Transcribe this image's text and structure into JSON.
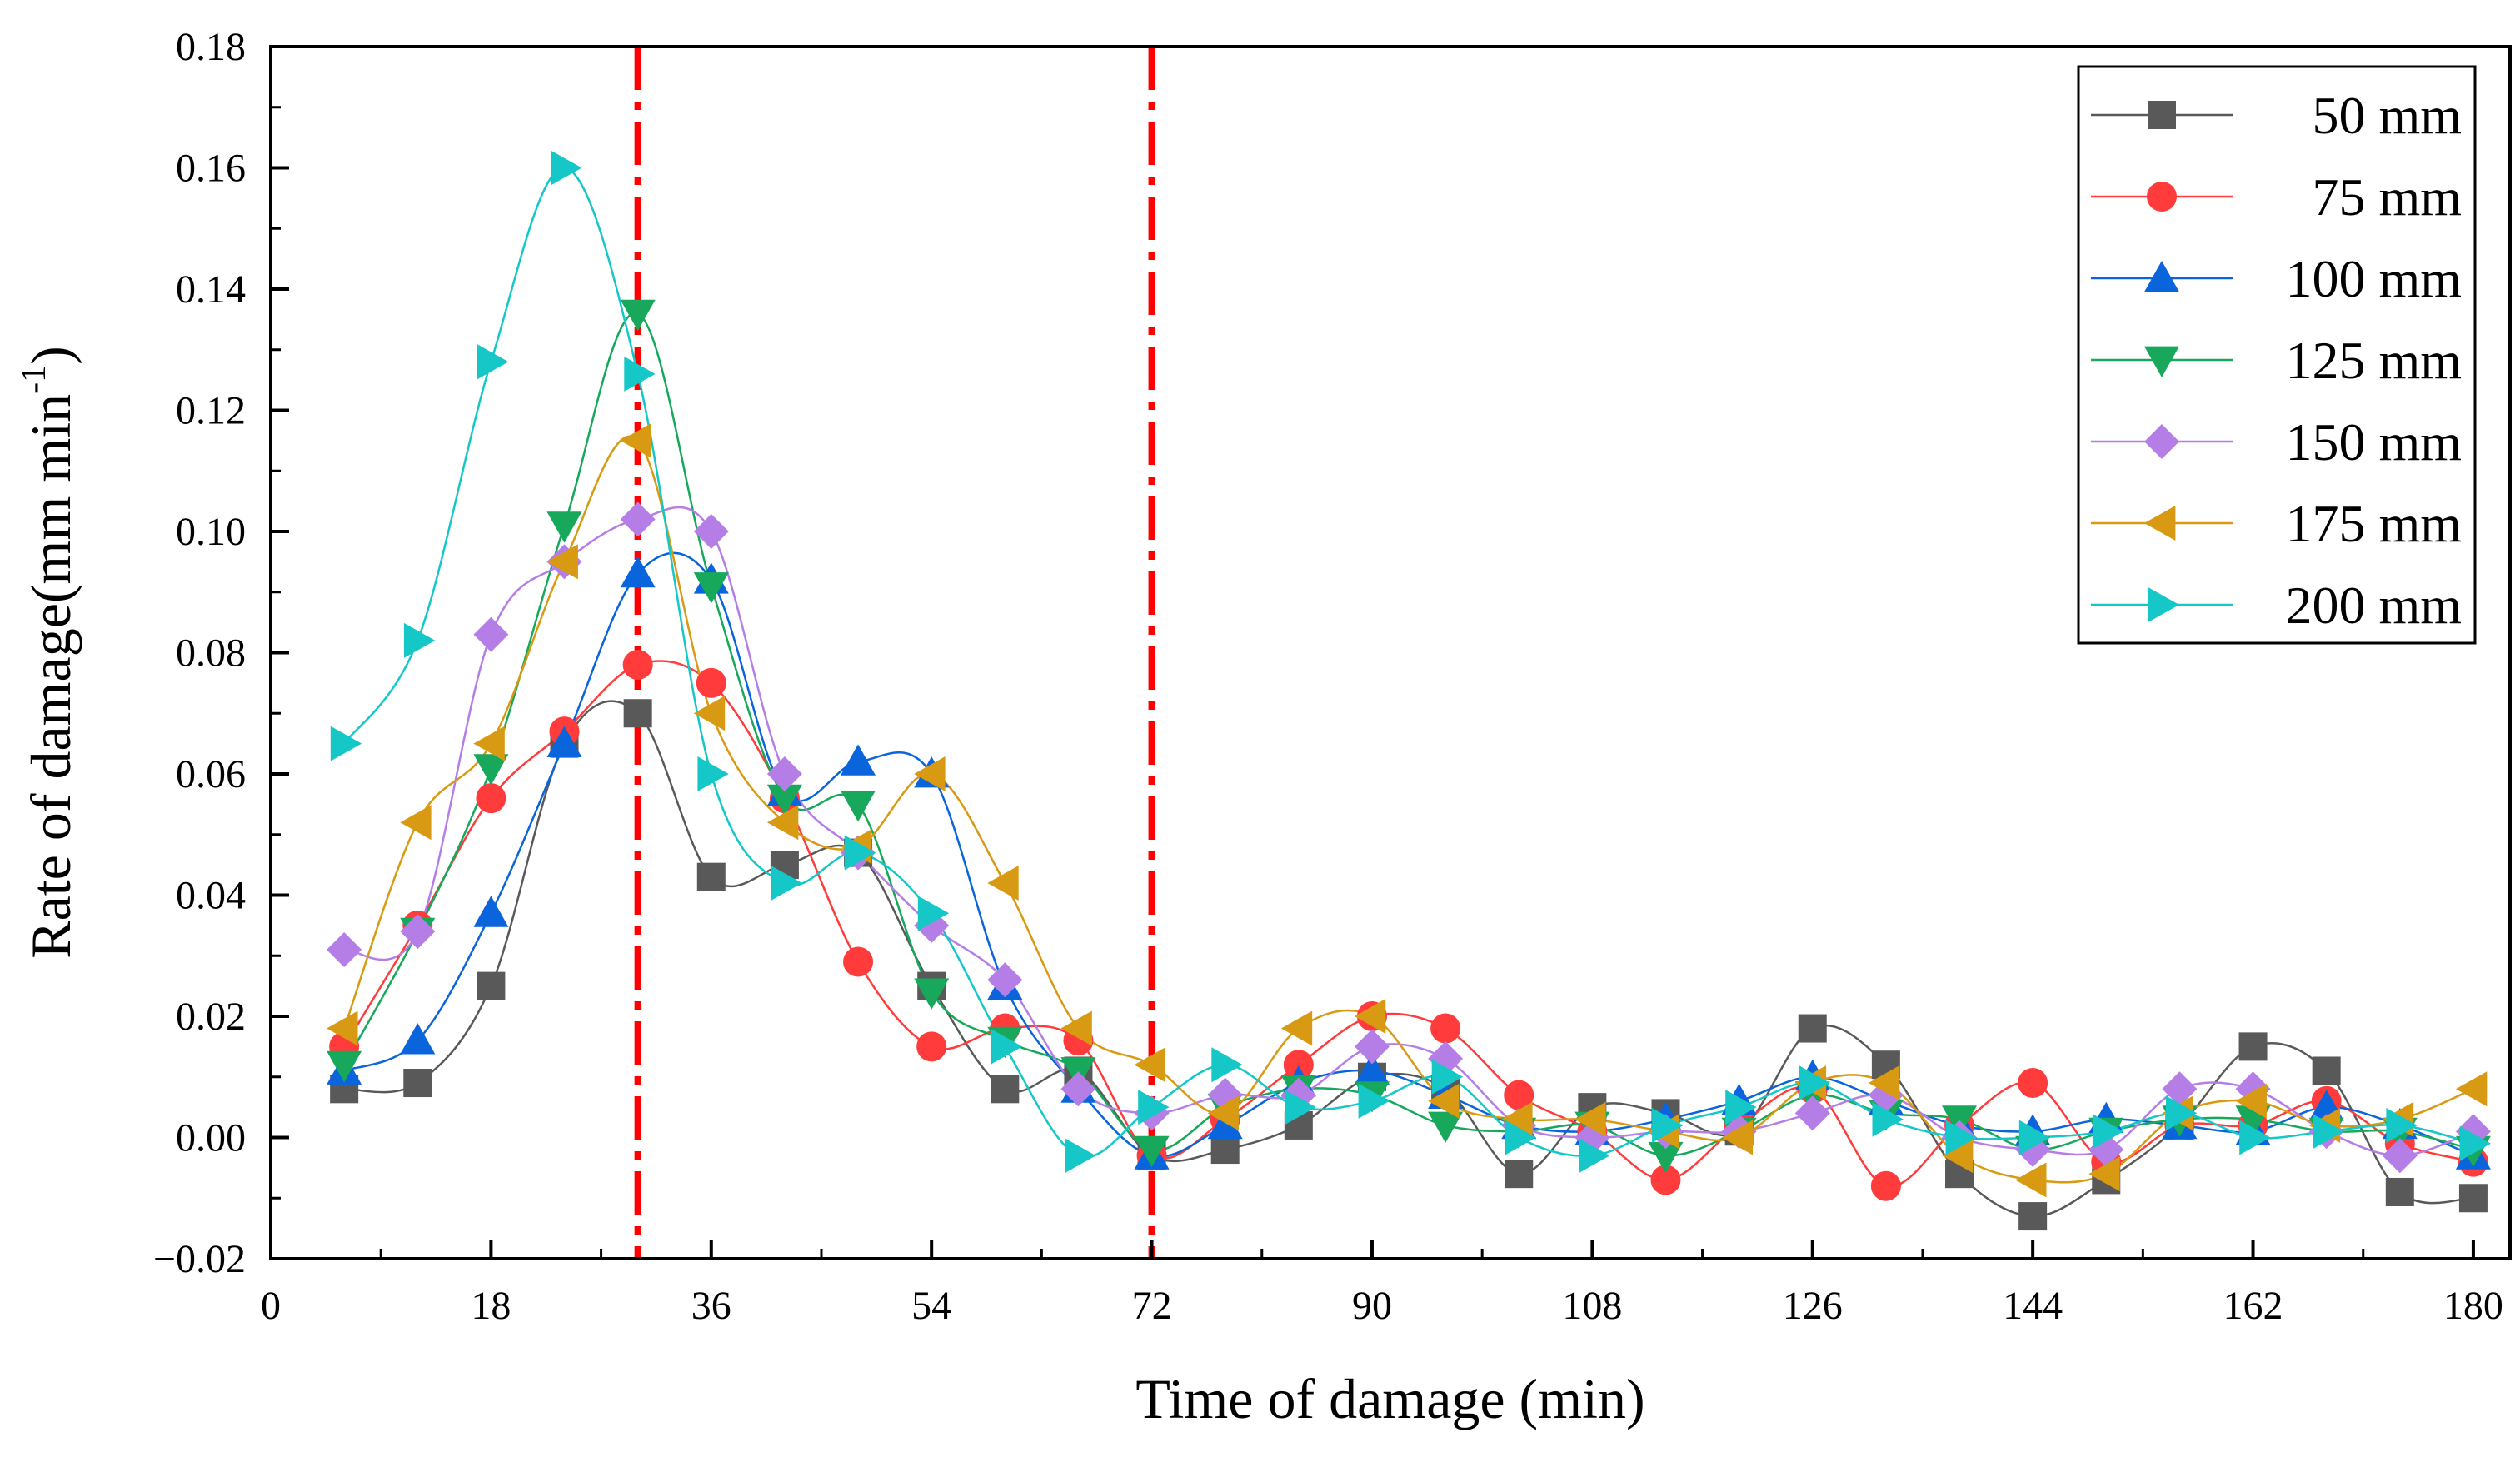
{
  "chart_data": {
    "type": "line",
    "title": "",
    "xlabel": "Time of damage (min)",
    "ylabel": "Rate of damage(mm min",
    "ylabel_superscript": "-1",
    "ylabel_close": ")",
    "xlim": [
      0,
      183
    ],
    "ylim": [
      -0.02,
      0.18
    ],
    "xticks": [
      0,
      18,
      36,
      54,
      72,
      90,
      108,
      126,
      144,
      162,
      180
    ],
    "xtick_labels": [
      "0",
      "18",
      "36",
      "54",
      "72",
      "90",
      "108",
      "126",
      "144",
      "162",
      "180"
    ],
    "yticks": [
      -0.02,
      0.0,
      0.02,
      0.04,
      0.06,
      0.08,
      0.1,
      0.12,
      0.14,
      0.16,
      0.18
    ],
    "ytick_labels": [
      "−0.02",
      "0.00",
      "0.02",
      "0.04",
      "0.06",
      "0.08",
      "0.10",
      "0.12",
      "0.14",
      "0.16",
      "0.18"
    ],
    "vlines": [
      30,
      72
    ],
    "vline_color": "#ff0000",
    "legend_position": "top-right",
    "x": [
      6,
      12,
      18,
      24,
      30,
      36,
      42,
      48,
      54,
      60,
      66,
      72,
      78,
      84,
      90,
      96,
      102,
      108,
      114,
      120,
      126,
      132,
      138,
      144,
      150,
      156,
      162,
      168,
      174,
      180
    ],
    "series": [
      {
        "name": "50 mm",
        "marker": "square",
        "color": "#595959",
        "values": [
          0.008,
          0.009,
          0.025,
          0.065,
          0.07,
          0.043,
          0.045,
          0.047,
          0.025,
          0.008,
          0.011,
          -0.003,
          -0.002,
          0.002,
          0.01,
          0.008,
          -0.006,
          0.005,
          0.004,
          0.001,
          0.018,
          0.012,
          -0.006,
          -0.013,
          -0.007,
          0.002,
          0.015,
          0.011,
          -0.009,
          -0.01
        ]
      },
      {
        "name": "75 mm",
        "marker": "circle",
        "color": "#ff3b3b",
        "values": [
          0.015,
          0.035,
          0.056,
          0.067,
          0.078,
          0.075,
          0.056,
          0.029,
          0.015,
          0.018,
          0.016,
          -0.003,
          0.003,
          0.012,
          0.02,
          0.018,
          0.007,
          0.001,
          -0.007,
          0.002,
          0.008,
          -0.008,
          0.002,
          0.009,
          -0.004,
          0.002,
          0.002,
          0.006,
          -0.001,
          -0.004
        ]
      },
      {
        "name": "100 mm",
        "marker": "triangle-up",
        "color": "#0a64dc",
        "values": [
          0.011,
          0.016,
          0.037,
          0.065,
          0.093,
          0.092,
          0.057,
          0.062,
          0.06,
          0.025,
          0.008,
          -0.003,
          0.002,
          0.009,
          0.011,
          0.007,
          0.002,
          0.001,
          0.003,
          0.006,
          0.01,
          0.006,
          0.002,
          0.001,
          0.003,
          0.002,
          0.001,
          0.005,
          0.002,
          -0.003
        ]
      },
      {
        "name": "125 mm",
        "marker": "triangle-down",
        "color": "#17a85b",
        "values": [
          0.012,
          0.034,
          0.061,
          0.101,
          0.136,
          0.091,
          0.056,
          0.055,
          0.024,
          0.016,
          0.011,
          -0.002,
          0.005,
          0.008,
          0.007,
          0.002,
          0.001,
          0.002,
          -0.003,
          0.001,
          0.007,
          0.004,
          0.003,
          -0.002,
          0.001,
          0.003,
          0.003,
          0.001,
          0.001,
          -0.002
        ]
      },
      {
        "name": "150 mm",
        "marker": "diamond",
        "color": "#b57ee6",
        "values": [
          0.031,
          0.034,
          0.083,
          0.095,
          0.102,
          0.1,
          0.06,
          0.047,
          0.035,
          0.026,
          0.008,
          0.004,
          0.007,
          0.007,
          0.015,
          0.013,
          0.002,
          0.0,
          0.001,
          0.001,
          0.004,
          0.007,
          0.0,
          -0.002,
          -0.002,
          0.008,
          0.008,
          0.001,
          -0.003,
          0.001
        ]
      },
      {
        "name": "175 mm",
        "marker": "triangle-left",
        "color": "#d89a12",
        "values": [
          0.018,
          0.052,
          0.065,
          0.095,
          0.115,
          0.07,
          0.052,
          0.048,
          0.06,
          0.042,
          0.018,
          0.012,
          0.004,
          0.018,
          0.02,
          0.006,
          0.003,
          0.003,
          0.001,
          0.0,
          0.009,
          0.009,
          -0.003,
          -0.007,
          -0.006,
          0.004,
          0.006,
          0.002,
          0.003,
          0.008
        ]
      },
      {
        "name": "200 mm",
        "marker": "triangle-right",
        "color": "#15c7c7",
        "values": [
          0.065,
          0.082,
          0.128,
          0.16,
          0.126,
          0.06,
          0.042,
          0.047,
          0.037,
          0.015,
          -0.003,
          0.005,
          0.012,
          0.005,
          0.006,
          0.01,
          0.0,
          -0.003,
          0.002,
          0.005,
          0.009,
          0.003,
          0.0,
          0.0,
          0.001,
          0.004,
          0.0,
          0.001,
          0.002,
          -0.001
        ]
      }
    ]
  }
}
